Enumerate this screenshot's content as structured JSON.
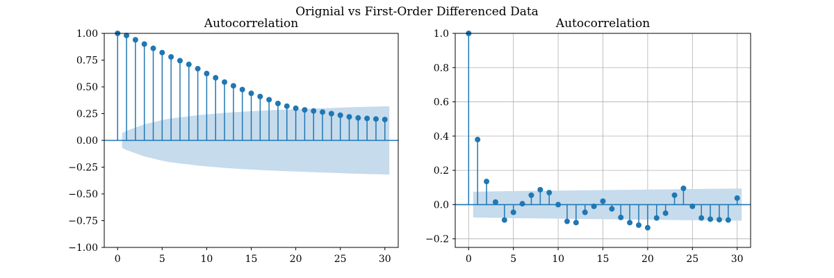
{
  "figure": {
    "title": "Orignial vs First-Order Differenced Data"
  },
  "colors": {
    "series": "#1f77b4",
    "confidence_band": "#c6dbec",
    "grid": "#b0b0b0"
  },
  "chart_data": [
    {
      "type": "stem",
      "title": "Autocorrelation",
      "xlabel": "",
      "ylabel": "",
      "xlim": [
        -1.5,
        31.5
      ],
      "ylim": [
        -1.0,
        1.0
      ],
      "xticks": [
        0,
        5,
        10,
        15,
        20,
        25,
        30
      ],
      "yticks": [
        -1.0,
        -0.75,
        -0.5,
        -0.25,
        0.0,
        0.25,
        0.5,
        0.75,
        1.0
      ],
      "ytick_labels": [
        "−1.00",
        "−0.75",
        "−0.50",
        "−0.25",
        "0.00",
        "0.25",
        "0.50",
        "0.75",
        "1.00"
      ],
      "xtick_labels": [
        "0",
        "5",
        "10",
        "15",
        "20",
        "25",
        "30"
      ],
      "grid": false,
      "lags": [
        0,
        1,
        2,
        3,
        4,
        5,
        6,
        7,
        8,
        9,
        10,
        11,
        12,
        13,
        14,
        15,
        16,
        17,
        18,
        19,
        20,
        21,
        22,
        23,
        24,
        25,
        26,
        27,
        28,
        29,
        30
      ],
      "values": [
        1.0,
        0.98,
        0.94,
        0.9,
        0.86,
        0.82,
        0.78,
        0.745,
        0.71,
        0.67,
        0.625,
        0.585,
        0.545,
        0.51,
        0.475,
        0.44,
        0.41,
        0.38,
        0.345,
        0.32,
        0.3,
        0.285,
        0.275,
        0.265,
        0.25,
        0.235,
        0.22,
        0.21,
        0.205,
        0.2,
        0.195
      ],
      "confidence_band": {
        "lags": [
          0.5,
          1,
          2,
          3,
          4,
          5,
          6,
          7,
          8,
          9,
          10,
          11,
          12,
          13,
          14,
          15,
          16,
          17,
          18,
          19,
          20,
          21,
          22,
          23,
          24,
          25,
          26,
          27,
          28,
          29,
          30,
          30.5
        ],
        "upper": [
          0.07,
          0.09,
          0.12,
          0.15,
          0.17,
          0.19,
          0.205,
          0.215,
          0.225,
          0.235,
          0.243,
          0.25,
          0.257,
          0.263,
          0.268,
          0.273,
          0.277,
          0.281,
          0.285,
          0.288,
          0.291,
          0.294,
          0.297,
          0.3,
          0.303,
          0.306,
          0.309,
          0.312,
          0.314,
          0.316,
          0.318,
          0.319
        ]
      }
    },
    {
      "type": "stem",
      "title": "Autocorrelation",
      "xlabel": "",
      "ylabel": "",
      "xlim": [
        -1.5,
        31.5
      ],
      "ylim": [
        -0.25,
        1.0
      ],
      "xticks": [
        0,
        5,
        10,
        15,
        20,
        25,
        30
      ],
      "yticks": [
        -0.2,
        0.0,
        0.2,
        0.4,
        0.6,
        0.8,
        1.0
      ],
      "ytick_labels": [
        "−0.2",
        "0.0",
        "0.2",
        "0.4",
        "0.6",
        "0.8",
        "1.0"
      ],
      "xtick_labels": [
        "0",
        "5",
        "10",
        "15",
        "20",
        "25",
        "30"
      ],
      "grid": true,
      "lags": [
        0,
        1,
        2,
        3,
        4,
        5,
        6,
        7,
        8,
        9,
        10,
        11,
        12,
        13,
        14,
        15,
        16,
        17,
        18,
        19,
        20,
        21,
        22,
        23,
        24,
        25,
        26,
        27,
        28,
        29,
        30
      ],
      "values": [
        1.0,
        0.38,
        0.135,
        0.015,
        -0.09,
        -0.045,
        0.005,
        0.055,
        0.087,
        0.07,
        0.0,
        -0.098,
        -0.105,
        -0.045,
        -0.01,
        0.02,
        -0.025,
        -0.075,
        -0.105,
        -0.12,
        -0.135,
        -0.078,
        -0.05,
        0.055,
        0.095,
        -0.01,
        -0.078,
        -0.085,
        -0.088,
        -0.09,
        0.038
      ],
      "confidence_band": {
        "lags": [
          0.5,
          5,
          10,
          15,
          20,
          25,
          30.5
        ],
        "upper": [
          0.075,
          0.079,
          0.082,
          0.085,
          0.088,
          0.091,
          0.094
        ]
      }
    }
  ]
}
